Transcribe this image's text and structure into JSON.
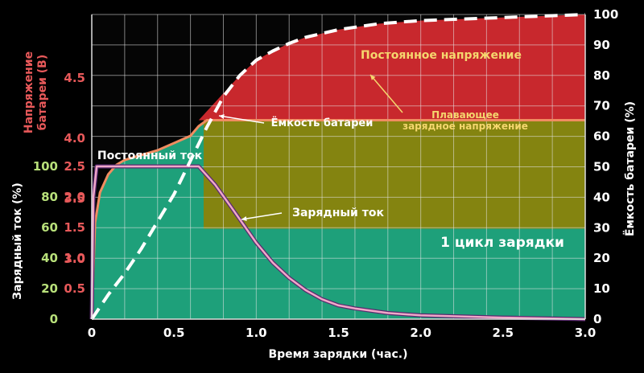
{
  "chart_data": {
    "type": "line",
    "xlabel": "Время зарядки (час.)",
    "ylabel_voltage": [
      "Напряжение",
      "батареи (В)"
    ],
    "ylabel_current": "Зарядный ток (%)",
    "ylabel_capacity": "Ёмкость батареи (%)",
    "xlim": [
      0,
      3.0
    ],
    "x_ticks": [
      "0",
      "0.5",
      "1.0",
      "1.5",
      "2.0",
      "2.5",
      "3.0"
    ],
    "voltage_ticks": [
      "3.0",
      "3.5",
      "4.0",
      "4.5"
    ],
    "current_ticks": [
      "0",
      "20",
      "40",
      "60",
      "80",
      "100"
    ],
    "capacity_ticks": [
      "0",
      "10",
      "20",
      "30",
      "40",
      "50",
      "60",
      "70",
      "80",
      "90",
      "100"
    ],
    "series": [
      {
        "name": "Напряжение батареи",
        "unit": "V",
        "axis": "left-voltage",
        "color": "#f08c60",
        "x": [
          0,
          0.02,
          0.05,
          0.1,
          0.15,
          0.2,
          0.3,
          0.4,
          0.5,
          0.6,
          0.65,
          0.7,
          1.0,
          1.5,
          2.0,
          2.5,
          3.0
        ],
        "values": [
          2.5,
          3.3,
          3.55,
          3.7,
          3.78,
          3.82,
          3.86,
          3.9,
          3.96,
          4.02,
          4.1,
          4.15,
          4.15,
          4.15,
          4.15,
          4.15,
          4.15
        ]
      },
      {
        "name": "Зарядный ток",
        "unit": "%",
        "axis": "left-current",
        "color": "#f0a8c8",
        "x": [
          0,
          0.01,
          0.03,
          0.1,
          0.3,
          0.5,
          0.65,
          0.75,
          0.85,
          1.0,
          1.1,
          1.2,
          1.3,
          1.4,
          1.5,
          1.6,
          1.8,
          2.0,
          2.5,
          3.0
        ],
        "values": [
          0,
          80,
          100,
          100,
          100,
          100,
          100,
          88,
          73,
          50,
          37,
          27,
          19,
          13,
          9,
          7,
          4,
          2.5,
          1,
          0
        ]
      },
      {
        "name": "Ёмкость батареи",
        "unit": "%",
        "axis": "right-capacity",
        "color": "#ffffff",
        "x": [
          0,
          0.1,
          0.2,
          0.3,
          0.4,
          0.5,
          0.6,
          0.7,
          0.8,
          0.9,
          1.0,
          1.1,
          1.2,
          1.3,
          1.5,
          1.75,
          2.0,
          2.5,
          3.0
        ],
        "values": [
          0,
          8,
          15,
          23,
          32,
          41,
          52,
          63,
          73,
          80,
          85,
          88,
          90.5,
          92.5,
          95,
          97,
          98,
          99,
          100
        ]
      }
    ],
    "regions": [
      {
        "label": "Постоянное напряжение",
        "color": "#c8282d"
      },
      {
        "label_lines": [
          "Плавающее",
          "зарядное напряжение"
        ],
        "color": "#848410"
      },
      {
        "label": "",
        "color": "#1ea07a"
      }
    ],
    "annotations": {
      "constant_current": "Постоянный ток",
      "capacity": "Ёмкость батареи",
      "charging_current": "Зарядный ток",
      "cycle": "1 цикл зарядки"
    },
    "colors": {
      "voltage_axis": "#e8595a",
      "current_axis": "#b8e07a",
      "capacity_axis": "#ffffff",
      "constant_voltage_label": "#f5d76e",
      "float_label": "#f5d76e"
    }
  }
}
